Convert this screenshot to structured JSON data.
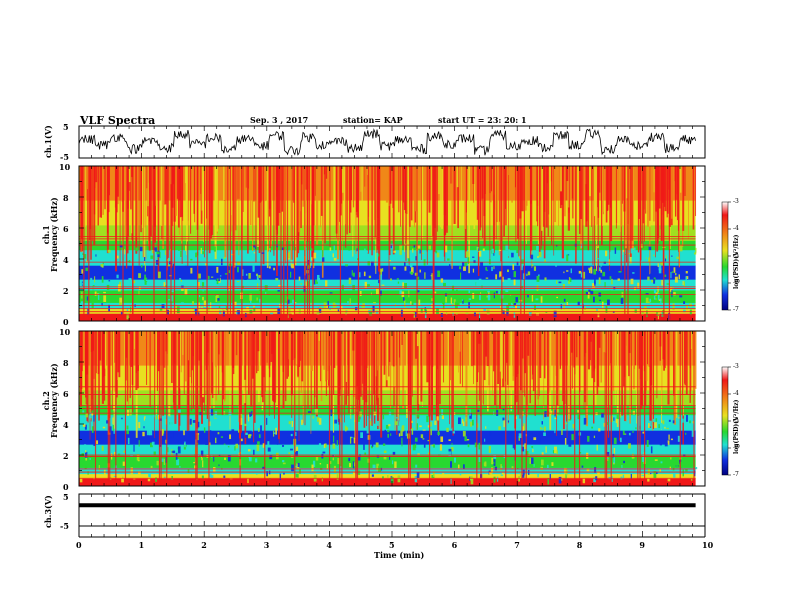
{
  "header": {
    "title": "VLF Spectra",
    "date": "Sep. 3  , 2017",
    "station": "station= KAP",
    "start": "start  UT  =   23: 20: 1"
  },
  "colorbar_ticks": [
    "-3",
    "-4",
    "-5",
    "-6",
    "-7"
  ],
  "colorbar_label": "log(PSD)(V²/Hz)",
  "colors": {
    "red": "#f01818",
    "orange": "#f08818",
    "yellow": "#e8e020",
    "lime": "#a0e020",
    "green": "#28d830",
    "cyan": "#20e0d0",
    "blue": "#1030e0",
    "navy": "#000080"
  },
  "chart_data": [
    {
      "type": "line",
      "ylabel": "ch.1(V)",
      "ylim": [
        -5,
        5
      ],
      "y_ticks": [
        "5",
        "-5"
      ],
      "x_range_min": [
        0,
        9.85
      ],
      "series": [
        {
          "values_description_free": true,
          "values": [
            0.8,
            -0.9,
            1.6,
            -2.1,
            0.4,
            -1.8,
            2.3,
            -0.6,
            1.2,
            -2.4,
            0.9,
            -1.1,
            2.0,
            -2.6,
            1.5,
            -0.8,
            0.3,
            -1.9,
            2.4,
            -1.2,
            0.7,
            -2.2,
            1.8,
            -0.5,
            1.1,
            -2.7,
            2.2,
            -1.4,
            0.6,
            -1.7,
            1.9,
            -0.9,
            2.5,
            -2.3,
            0.5,
            -1.3,
            1.7,
            -2.0,
            0.8,
            -0.4
          ]
        }
      ]
    },
    {
      "type": "heatmap",
      "ylabel": "ch.1\nFrequency (kHz)",
      "ylim": [
        0,
        10
      ],
      "y_ticks": [
        "0",
        "2",
        "4",
        "6",
        "8",
        "10"
      ],
      "x_range_min": [
        0,
        9.85
      ],
      "color_scale": [
        -7,
        -3
      ],
      "horizontal_lines_khz": [
        0.4,
        0.6,
        0.8,
        1.0,
        1.7,
        2.1,
        2.2,
        3.8,
        4.9,
        5.3,
        5.45
      ]
    },
    {
      "type": "heatmap",
      "ylabel": "ch.2\nFrequency (kHz)",
      "ylim": [
        0,
        10
      ],
      "y_ticks": [
        "0",
        "2",
        "4",
        "6",
        "8",
        "10"
      ],
      "x_range_min": [
        0,
        9.85
      ],
      "color_scale": [
        -7,
        -3
      ],
      "horizontal_lines_khz": [
        0.5,
        0.9,
        1.1,
        1.9,
        2.0,
        4.7,
        5.0,
        5.2,
        5.9,
        6.4
      ]
    },
    {
      "type": "line",
      "ylabel": "ch.3(V)",
      "ylim": [
        -5,
        5
      ],
      "y_ticks": [
        "5",
        "-5"
      ],
      "x_range_min": [
        0,
        9.85
      ],
      "series": [
        {
          "values": [
            1.5,
            1.5
          ]
        }
      ]
    }
  ],
  "xaxis": {
    "label": "Time  (min)",
    "ticks": [
      "0",
      "1",
      "2",
      "3",
      "4",
      "5",
      "6",
      "7",
      "8",
      "9",
      "10"
    ],
    "range": [
      0,
      10
    ]
  }
}
